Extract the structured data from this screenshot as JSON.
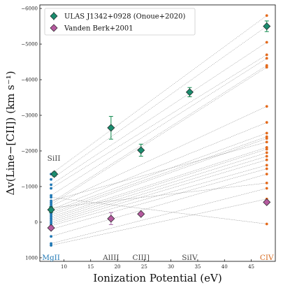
{
  "chart_data": {
    "type": "scatter",
    "xlabel": "Ionization Potential (eV)",
    "ylabel": "Δv(Line−[CII]) (km s⁻¹)",
    "xlim": [
      5.5,
      49.5
    ],
    "ylim": [
      1100,
      -6100
    ],
    "y_inverted": true,
    "x_ticks": [
      10,
      15,
      20,
      25,
      30,
      35,
      40,
      45
    ],
    "y_ticks": [
      1000,
      0,
      -1000,
      -2000,
      -3000,
      -4000,
      -5000,
      -6000
    ],
    "y_tick_labels": [
      "1000",
      "0",
      "−1000",
      "−2000",
      "−3000",
      "−4000",
      "−5000",
      "−6000"
    ],
    "legend": {
      "position": "top-left"
    },
    "line_labels": [
      {
        "text": "MgII",
        "x": 7.6,
        "color": "#1f77b4"
      },
      {
        "text": "AlIII",
        "x": 18.8,
        "color": "#444444"
      },
      {
        "text": "CIII]",
        "x": 24.4,
        "color": "#444444"
      },
      {
        "text": "SiIV",
        "x": 33.5,
        "color": "#444444"
      },
      {
        "text": "CIV",
        "x": 47.9,
        "color": "#d66a1f"
      }
    ],
    "annotations": [
      {
        "text": "SiII",
        "x": 8.2,
        "y": -1800
      }
    ],
    "colors": {
      "mgii": "#1f77b4",
      "civ": "#e46a1c",
      "onoue": "#1a8c6e",
      "vandenberk": "#b55a9f",
      "errorbar_onoue": "#118a4e",
      "errorbar_vb": "#a76aa6",
      "connector": "#707070"
    },
    "series": [
      {
        "name": "ULAS J1342+0928 (Onoue+2020)",
        "marker": "diamond",
        "x": [
          7.6,
          8.2,
          18.8,
          24.4,
          33.5,
          47.9
        ],
        "y": [
          -350,
          -1350,
          -2650,
          -2020,
          -3650,
          -5500
        ],
        "yerr": [
          80,
          60,
          320,
          170,
          130,
          150
        ]
      },
      {
        "name": "Vanden Berk+2001",
        "marker": "diamond",
        "x": [
          7.6,
          18.8,
          24.4,
          47.9
        ],
        "y": [
          160,
          -100,
          -230,
          -560
        ],
        "yerr": [
          0,
          170,
          0,
          0
        ]
      }
    ],
    "paired_samples": {
      "x_start": 7.6,
      "x_end": 47.9,
      "pairs": [
        [
          -1350,
          -5800
        ],
        [
          -1200,
          -5500
        ],
        [
          -1050,
          -5050
        ],
        [
          -950,
          -4700
        ],
        [
          -750,
          -4600
        ],
        [
          -550,
          -4400
        ],
        [
          -500,
          -4350
        ],
        [
          -450,
          -3250
        ],
        [
          -350,
          -2800
        ],
        [
          -300,
          -2500
        ],
        [
          -250,
          -2400
        ],
        [
          -200,
          -2350
        ],
        [
          -150,
          -2100
        ],
        [
          -100,
          -2050
        ],
        [
          -50,
          -1950
        ],
        [
          0,
          -1850
        ],
        [
          50,
          -1750
        ],
        [
          100,
          -1600
        ],
        [
          200,
          -1500
        ],
        [
          400,
          -1350
        ],
        [
          600,
          -950
        ],
        [
          650,
          -650
        ],
        [
          -400,
          -1100
        ],
        [
          -600,
          -2250
        ],
        [
          -700,
          50
        ]
      ]
    }
  }
}
